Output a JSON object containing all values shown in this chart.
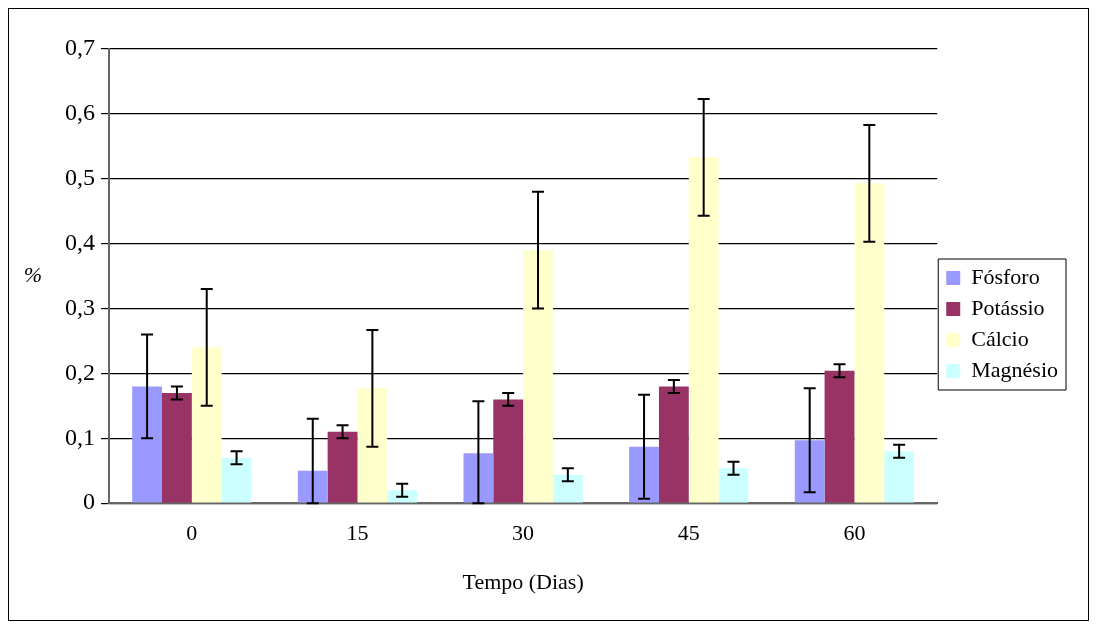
{
  "chart_data": {
    "type": "bar",
    "xlabel": "Tempo (Dias)",
    "ylabel": "%",
    "categories": [
      "0",
      "15",
      "30",
      "45",
      "60"
    ],
    "series": [
      {
        "name": "Fósforo",
        "color": "#9999ff",
        "values": [
          0.18,
          0.05,
          0.077,
          0.087,
          0.097
        ],
        "errors": [
          0.08,
          [
            0,
            0.13
          ],
          [
            0,
            0.157
          ],
          0.08,
          0.08
        ]
      },
      {
        "name": "Potássio",
        "color": "#993366",
        "values": [
          0.17,
          0.11,
          0.16,
          0.18,
          0.204
        ],
        "errors": [
          0.01,
          0.01,
          0.01,
          0.01,
          0.01
        ]
      },
      {
        "name": "Cálcio",
        "color": "#ffffcc",
        "values": [
          0.24,
          0.177,
          0.39,
          0.533,
          0.493
        ],
        "errors": [
          0.09,
          0.09,
          0.09,
          0.09,
          0.09
        ]
      },
      {
        "name": "Magnésio",
        "color": "#ccffff",
        "values": [
          0.07,
          0.02,
          0.044,
          0.054,
          0.08
        ],
        "errors": [
          0.01,
          0.01,
          0.01,
          0.01,
          0.01
        ]
      }
    ],
    "ylim": [
      0,
      0.7
    ],
    "yticks": [
      0,
      {
        "value": 0.1,
        "label": "0,1"
      },
      {
        "value": 0.2,
        "label": "0,2"
      },
      {
        "value": 0.3,
        "label": "0,3"
      },
      {
        "value": 0.4,
        "label": "0,4"
      },
      {
        "value": 0.5,
        "label": "0,5"
      },
      {
        "value": 0.6,
        "label": "0,6"
      },
      {
        "value": 0.7,
        "label": "0,7"
      }
    ],
    "grid": "y",
    "legend": "right"
  }
}
